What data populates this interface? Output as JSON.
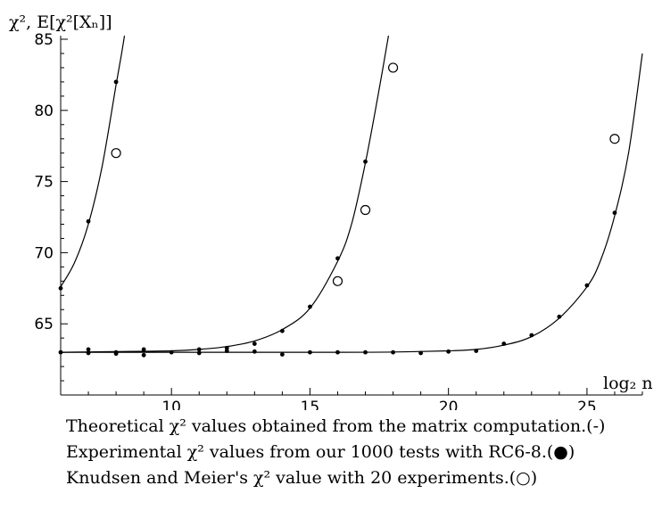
{
  "chart_data": {
    "type": "line",
    "ylabel": "χ², E[χ²[Xₙ]]",
    "xlabel": "log₂ n",
    "xlim": [
      6,
      27
    ],
    "ylim": [
      60,
      85
    ],
    "xticks": [
      10,
      15,
      20,
      25
    ],
    "yticks": [
      65,
      70,
      75,
      80,
      85
    ],
    "grid": false,
    "series": [
      {
        "style": "line",
        "curves": [
          {
            "x": [
              6,
              6.5,
              7,
              7.5,
              8,
              8.2,
              8.4,
              8.5
            ],
            "y": [
              67.6,
              69.3,
              72.0,
              76.1,
              81.8,
              84.0,
              86.5,
              88.0
            ]
          },
          {
            "x": [
              6,
              8,
              10,
              11,
              12,
              13,
              14,
              15,
              16,
              16.5,
              17,
              17.5,
              17.9
            ],
            "y": [
              63.0,
              63.05,
              63.1,
              63.2,
              63.4,
              63.8,
              64.6,
              66.1,
              69.4,
              72.0,
              76.3,
              81.5,
              86.0
            ]
          },
          {
            "x": [
              6,
              12,
              16,
              18,
              20,
              21,
              22,
              23,
              24,
              25,
              25.5,
              26,
              26.5,
              27
            ],
            "y": [
              63.0,
              63.0,
              63.0,
              63.02,
              63.1,
              63.2,
              63.5,
              64.1,
              65.4,
              67.6,
              69.5,
              72.6,
              77.0,
              84.0
            ]
          }
        ]
      },
      {
        "style": "dot",
        "points": [
          [
            6,
            67.5
          ],
          [
            7,
            72.2
          ],
          [
            8,
            82.0
          ],
          [
            6,
            63.0
          ],
          [
            7,
            63.2
          ],
          [
            7,
            62.95
          ],
          [
            8,
            63.0
          ],
          [
            8,
            62.9
          ],
          [
            9,
            63.2
          ],
          [
            9,
            62.8
          ],
          [
            10,
            63.0
          ],
          [
            11,
            63.2
          ],
          [
            11,
            62.95
          ],
          [
            12,
            63.3
          ],
          [
            12,
            63.1
          ],
          [
            13,
            63.6
          ],
          [
            13,
            63.05
          ],
          [
            14,
            64.5
          ],
          [
            14,
            62.85
          ],
          [
            15,
            66.2
          ],
          [
            15,
            63.0
          ],
          [
            16,
            69.6
          ],
          [
            16,
            63.0
          ],
          [
            17,
            76.4
          ],
          [
            17,
            63.0
          ],
          [
            18,
            63.0
          ],
          [
            19,
            62.95
          ],
          [
            20,
            63.05
          ],
          [
            21,
            63.1
          ],
          [
            22,
            63.6
          ],
          [
            23,
            64.2
          ],
          [
            24,
            65.5
          ],
          [
            25,
            67.7
          ],
          [
            26,
            72.8
          ]
        ]
      },
      {
        "style": "circle",
        "points": [
          [
            8,
            77.0
          ],
          [
            16,
            68.0
          ],
          [
            17,
            73.0
          ],
          [
            18,
            83.0
          ],
          [
            26,
            78.0
          ]
        ]
      }
    ]
  },
  "caption": {
    "line1": "Theoretical χ² values obtained from the matrix computation.(-)",
    "line2": "Experimental χ² values from our 1000 tests with RC6-8.(●)",
    "line3": "Knudsen and Meier's χ² value with 20 experiments.(○)"
  }
}
